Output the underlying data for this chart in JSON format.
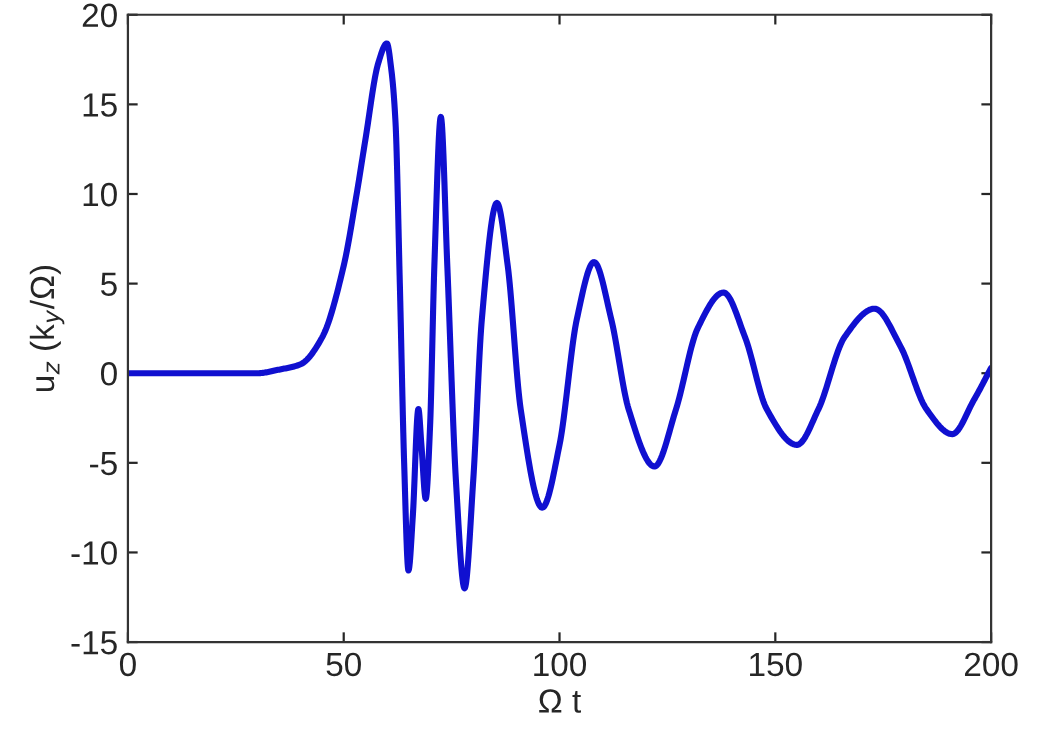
{
  "chart_data": {
    "type": "line",
    "xlabel": "Ω t",
    "ylabel": "u$_{z}$ (k$_{y}$/Ω)",
    "x": [
      0,
      10,
      20,
      30,
      35,
      40,
      45,
      50,
      53,
      55,
      58,
      60,
      61,
      62,
      63,
      64,
      65,
      66,
      67.3,
      68,
      69,
      70,
      71,
      72.5,
      74,
      76,
      78,
      80,
      82,
      85.5,
      88,
      91,
      96,
      100,
      104,
      108,
      112,
      116,
      122,
      127,
      132,
      138,
      143,
      148,
      155,
      160,
      166,
      173,
      179,
      185,
      191,
      196,
      200
    ],
    "series": [
      {
        "color": "#1010d0",
        "values": [
          0,
          0,
          0,
          0,
          0.2,
          0.5,
          2,
          6,
          10,
          13,
          17.3,
          18.4,
          17,
          14,
          5,
          -5,
          -11,
          -8,
          -2,
          -4,
          -7,
          -3,
          6,
          14.3,
          6,
          -6,
          -12,
          -6,
          3,
          9.5,
          6,
          -2,
          -7.5,
          -4,
          3,
          6.2,
          3,
          -2,
          -5.2,
          -2,
          2.5,
          4.5,
          2,
          -2,
          -4,
          -2,
          2,
          3.6,
          1.5,
          -2,
          -3.4,
          -1.5,
          0.3
        ]
      }
    ],
    "xlim": [
      0,
      200
    ],
    "xticks": [
      0,
      50,
      100,
      150,
      200
    ],
    "ylim": [
      -15,
      20
    ],
    "yticks": [
      -15,
      -10,
      -5,
      0,
      5,
      10,
      15,
      20
    ],
    "grid": false,
    "legend": false,
    "marker": "none",
    "line_style": "solid"
  }
}
